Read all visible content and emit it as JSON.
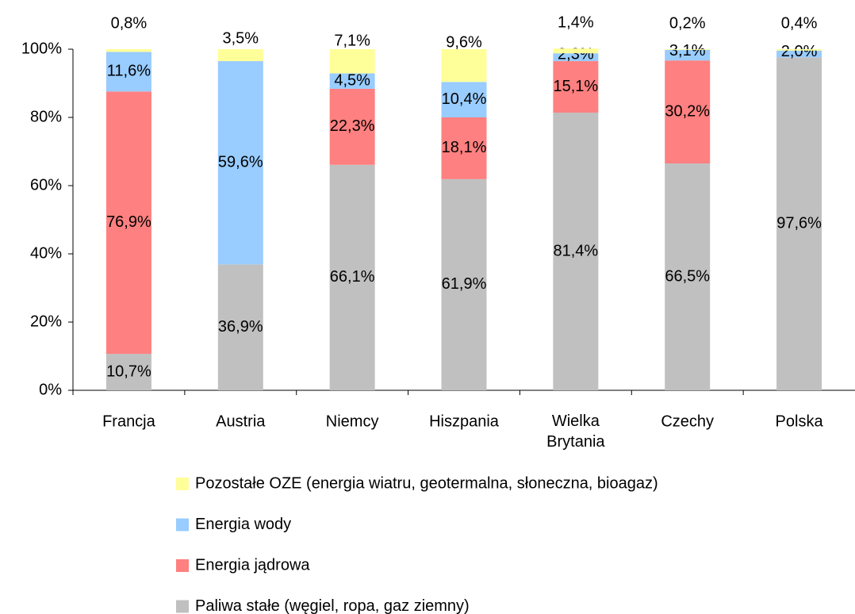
{
  "chart_data": {
    "type": "stacked_bar",
    "categories": [
      "Francja",
      "Austria",
      "Niemcy",
      "Hiszpania",
      "Wielka Brytania",
      "Czechy",
      "Polska"
    ],
    "series": [
      {
        "name": "Paliwa stałe (węgiel, ropa, gaz ziemny)",
        "color": "#c0c0c0",
        "values": [
          10.7,
          36.9,
          66.1,
          61.9,
          81.4,
          66.5,
          97.6
        ],
        "value_labels": [
          "10,7%",
          "36,9%",
          "66,1%",
          "61,9%",
          "81,4%",
          "66,5%",
          "97,6%"
        ]
      },
      {
        "name": "Energia jądrowa",
        "color": "#ff8080",
        "values": [
          76.9,
          null,
          22.3,
          18.1,
          15.1,
          30.2,
          null
        ],
        "value_labels": [
          "76,9%",
          null,
          "22,3%",
          "18,1%",
          "15,1%",
          "30,2%",
          null
        ]
      },
      {
        "name": "Energia wody",
        "color": "#99ccff",
        "values": [
          11.6,
          59.6,
          4.5,
          10.4,
          2.3,
          3.1,
          2.0
        ],
        "value_labels": [
          "11,6%",
          "59,6%",
          "4,5%",
          "10,4%",
          "2,3%",
          "3,1%",
          "2,0%"
        ]
      },
      {
        "name": "Pozostałe OZE (energia wiatru, geotermalna, słoneczna, bioagaz)",
        "color": "#ffff99",
        "values": [
          0.8,
          3.5,
          7.1,
          9.6,
          1.4,
          0.2,
          0.4
        ],
        "value_labels": [
          "0,8%",
          "3,5%",
          "7,1%",
          "9,6%",
          "1,4%",
          "0,2%",
          "0,4%"
        ]
      }
    ],
    "ylim": [
      0,
      100
    ],
    "yticks": [
      {
        "value": 0,
        "label": "0%"
      },
      {
        "value": 20,
        "label": "20%"
      },
      {
        "value": 40,
        "label": "40%"
      },
      {
        "value": 60,
        "label": "60%"
      },
      {
        "value": 80,
        "label": "80%"
      },
      {
        "value": 100,
        "label": "100%"
      }
    ],
    "legend": "bottom"
  }
}
